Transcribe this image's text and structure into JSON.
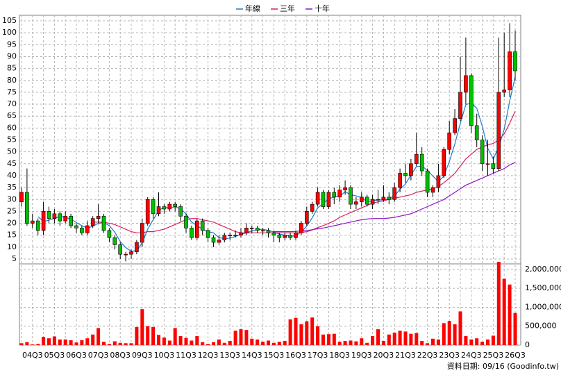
{
  "chart_data": {
    "type": "candlestick",
    "categories": [
      null,
      null,
      "04Q3",
      null,
      null,
      null,
      "05Q3",
      null,
      null,
      null,
      "06Q3",
      null,
      null,
      null,
      "07Q3",
      null,
      null,
      null,
      "08Q3",
      null,
      null,
      null,
      "09Q3",
      null,
      null,
      null,
      "10Q3",
      null,
      null,
      null,
      "11Q3",
      null,
      null,
      null,
      "12Q3",
      null,
      null,
      null,
      "13Q3",
      null,
      null,
      null,
      "14Q3",
      null,
      null,
      null,
      "15Q3",
      null,
      null,
      null,
      "16Q3",
      null,
      null,
      null,
      "17Q3",
      null,
      null,
      null,
      "18Q3",
      null,
      null,
      null,
      "19Q3",
      null,
      null,
      null,
      "20Q3",
      null,
      null,
      null,
      "21Q3",
      null,
      null,
      null,
      "22Q3",
      null,
      null,
      null,
      "23Q3",
      null,
      null,
      null,
      "24Q3",
      null,
      null,
      null,
      "25Q3",
      null,
      null,
      null,
      "26Q3"
    ],
    "open": [
      29,
      33,
      20,
      21,
      17,
      25,
      22,
      24,
      21,
      23,
      19,
      18,
      16,
      19,
      22,
      23,
      17,
      14,
      11,
      7,
      7,
      8,
      12,
      20,
      30,
      24,
      27,
      26,
      28,
      27,
      23,
      18,
      14,
      21,
      17,
      14,
      12,
      13,
      15,
      15,
      15,
      16,
      18,
      18,
      17,
      17,
      16,
      15,
      14,
      15,
      14,
      16,
      20,
      25,
      28,
      33,
      27,
      33,
      31,
      34,
      35,
      28,
      29,
      31,
      28,
      30,
      30,
      31,
      30,
      35,
      41,
      40,
      45,
      49,
      42,
      33,
      35,
      40,
      51,
      58,
      64,
      75,
      82,
      61,
      55,
      45,
      45,
      43,
      75,
      76,
      92
    ],
    "high": [
      35,
      43,
      24,
      22,
      29,
      27,
      26,
      25,
      25,
      24,
      20,
      19,
      21,
      23,
      28,
      24,
      18,
      15,
      12,
      8,
      9,
      13,
      22,
      31,
      31,
      33,
      28,
      29,
      29,
      28,
      24,
      19,
      22,
      22,
      18,
      15,
      15,
      16,
      16,
      17,
      18,
      20,
      19,
      19,
      18,
      18,
      17,
      16,
      16,
      16,
      17,
      21,
      27,
      29,
      35,
      34,
      34,
      35,
      36,
      38,
      36,
      31,
      33,
      32,
      32,
      34,
      36,
      33,
      37,
      43,
      45,
      47,
      58,
      52,
      43,
      36,
      45,
      52,
      63,
      68,
      90,
      98,
      83,
      66,
      57,
      55,
      48,
      98,
      100,
      104,
      101
    ],
    "low": [
      27,
      19,
      18,
      15,
      15,
      20,
      20,
      19,
      20,
      18,
      16,
      15,
      15,
      18,
      20,
      16,
      12,
      9,
      5,
      4,
      5,
      7,
      10,
      19,
      22,
      23,
      24,
      25,
      25,
      21,
      16,
      13,
      13,
      15,
      12,
      10,
      11,
      12,
      13,
      14,
      14,
      15,
      16,
      16,
      15,
      14,
      12,
      12,
      13,
      13,
      13,
      15,
      19,
      24,
      27,
      26,
      26,
      28,
      29,
      32,
      26,
      26,
      27,
      27,
      26,
      28,
      29,
      28,
      29,
      33,
      37,
      38,
      44,
      40,
      31,
      31,
      33,
      39,
      49,
      57,
      63,
      70,
      58,
      52,
      42,
      40,
      41,
      42,
      73,
      73,
      80
    ],
    "close": [
      33,
      20,
      21,
      17,
      25,
      22,
      24,
      21,
      23,
      19,
      18,
      16,
      19,
      22,
      23,
      17,
      14,
      11,
      7,
      7,
      8,
      12,
      20,
      30,
      24,
      27,
      26,
      28,
      27,
      23,
      18,
      14,
      21,
      17,
      14,
      12,
      13,
      15,
      15,
      15,
      16,
      18,
      18,
      17,
      17,
      16,
      15,
      14,
      15,
      14,
      16,
      20,
      25,
      28,
      33,
      27,
      33,
      31,
      34,
      35,
      28,
      29,
      31,
      28,
      30,
      30,
      31,
      30,
      35,
      41,
      40,
      45,
      49,
      42,
      33,
      35,
      40,
      51,
      58,
      64,
      75,
      82,
      61,
      55,
      45,
      45,
      43,
      75,
      76,
      92,
      84
    ],
    "up_color": "#ff0000",
    "down_color": "#00c000",
    "volume": [
      50000,
      80000,
      20000,
      30000,
      220000,
      180000,
      230000,
      150000,
      150000,
      130000,
      70000,
      130000,
      180000,
      280000,
      450000,
      90000,
      30000,
      100000,
      60000,
      50000,
      50000,
      480000,
      950000,
      500000,
      480000,
      270000,
      200000,
      120000,
      450000,
      240000,
      190000,
      120000,
      240000,
      80000,
      30000,
      80000,
      150000,
      60000,
      110000,
      380000,
      420000,
      400000,
      170000,
      150000,
      90000,
      120000,
      60000,
      90000,
      110000,
      680000,
      720000,
      550000,
      630000,
      730000,
      500000,
      280000,
      290000,
      300000,
      90000,
      110000,
      120000,
      100000,
      180000,
      60000,
      240000,
      420000,
      110000,
      280000,
      330000,
      380000,
      360000,
      300000,
      320000,
      110000,
      50000,
      170000,
      150000,
      580000,
      640000,
      550000,
      890000,
      240000,
      150000,
      180000,
      90000,
      150000,
      250000,
      2200000,
      1750000,
      1600000,
      850000
    ],
    "volume_color": "#ff0000",
    "series": [
      {
        "name": "年線",
        "color": "#1e78d2",
        "values": [
          null,
          null,
          null,
          22.8,
          20.8,
          21.3,
          22,
          23,
          22.5,
          21.8,
          20.3,
          19,
          18,
          18.8,
          20,
          20.3,
          19,
          16.3,
          12.3,
          9.8,
          8.3,
          8.5,
          11.8,
          17.5,
          21.5,
          25.3,
          26.8,
          26.3,
          27,
          26,
          24,
          20.5,
          19,
          17.5,
          16.5,
          16,
          14,
          13.5,
          13.8,
          14.5,
          15.3,
          16,
          16.8,
          17.3,
          17.5,
          17,
          16.3,
          15.5,
          15,
          14.5,
          14.8,
          16.3,
          18.8,
          22.3,
          26.5,
          28.3,
          30.3,
          31,
          31.3,
          33.3,
          32,
          31.5,
          30.8,
          29,
          29.5,
          29.8,
          29.8,
          30.3,
          31.5,
          34.3,
          36.5,
          40.3,
          43.8,
          44,
          42.3,
          39.8,
          37.5,
          39.8,
          46,
          53.3,
          62,
          69.8,
          70.5,
          68.3,
          60.8,
          51.5,
          47,
          52,
          59.5,
          71.3,
          81.5
        ]
      },
      {
        "name": "三年",
        "color": "#d81e5a",
        "values": [
          null,
          null,
          null,
          null,
          null,
          null,
          null,
          null,
          null,
          null,
          null,
          null,
          null,
          20.5,
          20.5,
          20.5,
          20,
          19.5,
          18.5,
          17.5,
          16.5,
          16,
          16,
          16.5,
          16.5,
          17,
          17.5,
          18.5,
          19.5,
          20.5,
          21.5,
          22,
          22,
          21.5,
          21,
          20.5,
          19.5,
          18.5,
          17.5,
          16.5,
          16,
          16,
          16,
          16,
          16,
          16,
          16,
          16,
          16,
          16,
          16,
          16.2,
          16.5,
          17.2,
          18.2,
          19,
          20,
          21,
          22.5,
          23.5,
          24.5,
          25.5,
          26.5,
          27.5,
          28.5,
          29,
          29.5,
          30,
          30.5,
          31,
          31.5,
          32,
          33,
          33.5,
          34,
          34.5,
          35.5,
          37,
          39,
          41,
          44,
          47,
          49,
          51,
          52,
          53,
          53.5,
          55,
          57.5,
          62,
          67
        ]
      },
      {
        "name": "十年",
        "color": "#8a14c8",
        "values": [
          null,
          null,
          null,
          null,
          null,
          null,
          null,
          null,
          null,
          null,
          null,
          null,
          null,
          null,
          null,
          null,
          null,
          null,
          null,
          null,
          null,
          null,
          null,
          null,
          null,
          null,
          null,
          null,
          null,
          null,
          null,
          null,
          null,
          null,
          null,
          null,
          null,
          null,
          null,
          null,
          null,
          null,
          null,
          null,
          null,
          null,
          16.5,
          16.5,
          16.5,
          16.5,
          16.6,
          16.8,
          17,
          17.3,
          17.7,
          18,
          18.5,
          19,
          19.5,
          20,
          20.5,
          21,
          21.5,
          21.8,
          22,
          22,
          22,
          22.2,
          22.5,
          23,
          23.5,
          24,
          25,
          26,
          27,
          28,
          29,
          30,
          31.5,
          33,
          34.5,
          36,
          37,
          38,
          39,
          40,
          41,
          42,
          43,
          44.5,
          45.5
        ]
      }
    ],
    "ylim": [
      5,
      105
    ],
    "yticks": [
      5,
      10,
      15,
      20,
      25,
      30,
      35,
      40,
      45,
      50,
      55,
      60,
      65,
      70,
      75,
      80,
      85,
      90,
      95,
      100,
      105
    ],
    "y2lim": [
      0,
      2200000
    ],
    "y2ticks": [
      {
        "value": 0,
        "label": "0"
      },
      {
        "value": 500000,
        "label": "500,000"
      },
      {
        "value": 1000000,
        "label": "1,000,000"
      },
      {
        "value": 1500000,
        "label": "1,500,000"
      },
      {
        "value": 2000000,
        "label": "2,000,000"
      }
    ],
    "grid": true,
    "legend": "top",
    "source": "資料日期: 09/16 (Goodinfo.tw)"
  }
}
